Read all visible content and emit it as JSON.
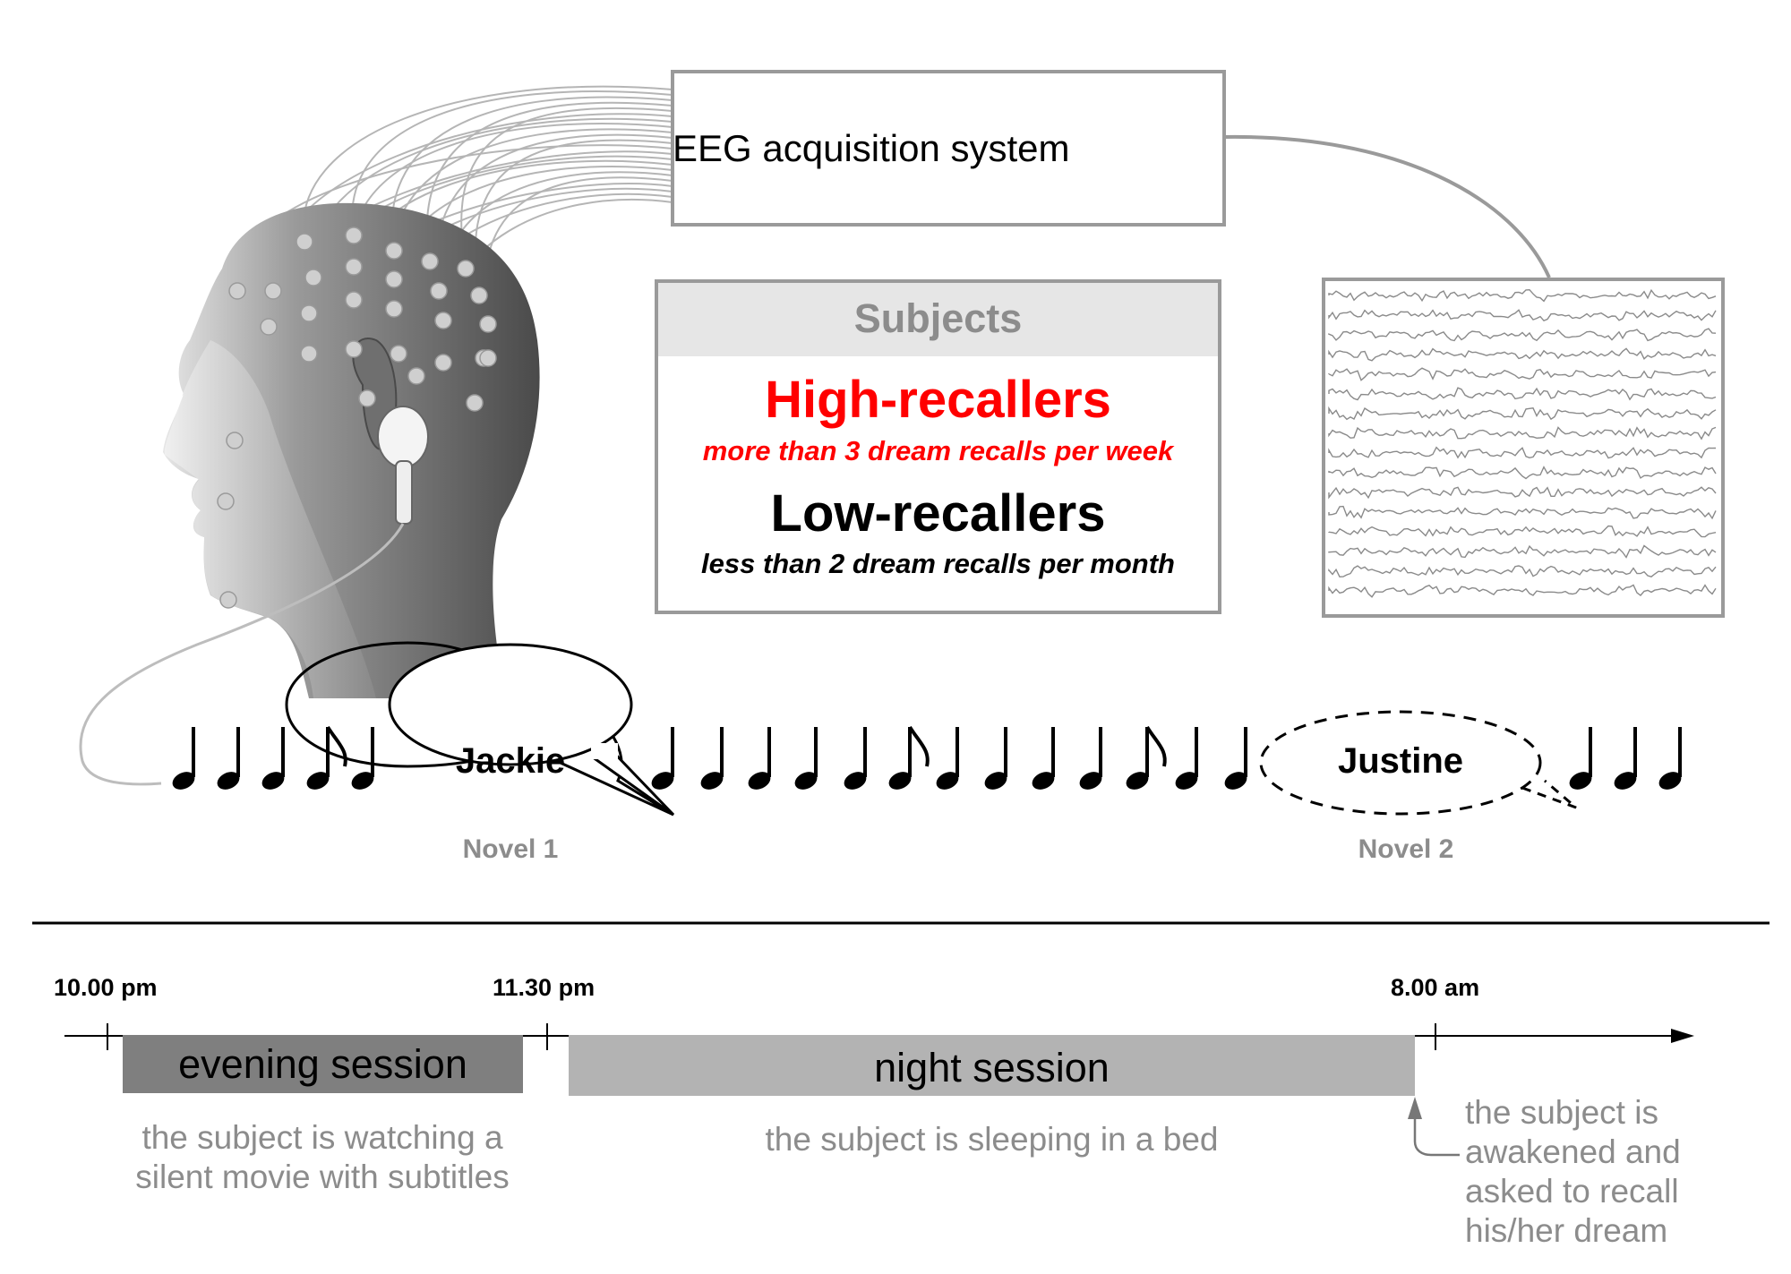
{
  "eeg_box": {
    "label": "EEG acquisition system"
  },
  "subjects": {
    "title": "Subjects",
    "high": {
      "label": "High-recallers",
      "desc": "more than 3 dream recalls per week"
    },
    "low": {
      "label": "Low-recallers",
      "desc": "less than 2 dream recalls per month"
    }
  },
  "stimuli": {
    "name1": "Jackie",
    "name2": "Justine",
    "novel1": "Novel 1",
    "novel2": "Novel 2"
  },
  "timeline": {
    "t1": "10.00 pm",
    "t2": "11.30 pm",
    "t3": "8.00 am",
    "evening_label": "evening session",
    "night_label": "night session",
    "evening_desc": [
      "the subject is watching a",
      "silent movie with subtitles"
    ],
    "night_desc": "the subject is sleeping in a bed",
    "awake_desc": [
      "the subject is",
      "awakened and",
      "asked to recall",
      "his/her dream"
    ]
  },
  "colors": {
    "high": "#ff0000",
    "evening_bar": "#7f7f7f",
    "night_bar": "#b3b3b3",
    "grey_text": "#8c8c8c"
  },
  "icons": [
    "head-with-electrodes-icon",
    "earphone-icon",
    "eeg-trace-icon",
    "music-note-icon",
    "speech-bubble-icon"
  ]
}
